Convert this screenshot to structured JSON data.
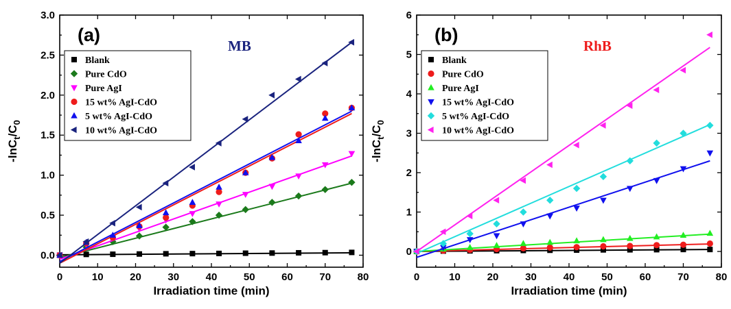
{
  "chart_data": [
    {
      "type": "scatter",
      "panel_label": "(a)",
      "annotation": {
        "text": "MB",
        "color": "#1a237e"
      },
      "xlabel": "Irradiation time (min)",
      "ylabel": "-lnCt/C0",
      "ylabel_parts": {
        "main": "-lnC",
        "sub1": "t",
        "mid": "/C",
        "sub2": "0"
      },
      "xlim": [
        0,
        80
      ],
      "ylim": [
        -0.15,
        3.0
      ],
      "xticks": [
        "0",
        "10",
        "20",
        "30",
        "40",
        "50",
        "60",
        "70",
        "80"
      ],
      "yticks": [
        "0.0",
        "0.5",
        "1.0",
        "1.5",
        "2.0",
        "2.5",
        "3.0"
      ],
      "legend_position": "top-left",
      "series": [
        {
          "name": "Blank",
          "color": "#000000",
          "marker": "square",
          "x": [
            0,
            7,
            14,
            21,
            28,
            35,
            42,
            49,
            56,
            63,
            70,
            77
          ],
          "y": [
            0,
            0.01,
            0.012,
            0.015,
            0.018,
            0.02,
            0.022,
            0.025,
            0.027,
            0.03,
            0.032,
            0.035
          ],
          "fit": [
            [
              0,
              0.005
            ],
            [
              77,
              0.03
            ]
          ]
        },
        {
          "name": "Pure CdO",
          "color": "#1b7a1b",
          "marker": "diamond",
          "x": [
            0,
            7,
            14,
            21,
            28,
            35,
            42,
            49,
            56,
            63,
            70,
            77
          ],
          "y": [
            0,
            0.1,
            0.17,
            0.24,
            0.35,
            0.42,
            0.5,
            0.57,
            0.66,
            0.74,
            0.82,
            0.91
          ],
          "fit": [
            [
              0,
              -0.03
            ],
            [
              77,
              0.9
            ]
          ]
        },
        {
          "name": "Pure AgI",
          "color": "#ff00ff",
          "marker": "triangle-down",
          "x": [
            0,
            7,
            14,
            21,
            28,
            35,
            42,
            49,
            56,
            63,
            70,
            77
          ],
          "y": [
            0,
            0.13,
            0.22,
            0.33,
            0.44,
            0.52,
            0.64,
            0.76,
            0.86,
            0.99,
            1.13,
            1.27
          ],
          "fit": [
            [
              0,
              -0.05
            ],
            [
              77,
              1.24
            ]
          ]
        },
        {
          "name": "15 wt% AgI-CdO",
          "color": "#ee1c1c",
          "marker": "circle",
          "x": [
            0,
            7,
            14,
            21,
            28,
            35,
            42,
            49,
            56,
            63,
            70,
            77
          ],
          "y": [
            0,
            0.15,
            0.22,
            0.36,
            0.47,
            0.62,
            0.79,
            1.03,
            1.21,
            1.51,
            1.77,
            1.84
          ],
          "fit": [
            [
              0,
              -0.1
            ],
            [
              77,
              1.77
            ]
          ]
        },
        {
          "name": "5 wt% AgI-CdO",
          "color": "#1010ee",
          "marker": "triangle-up",
          "x": [
            0,
            7,
            14,
            21,
            28,
            35,
            42,
            49,
            56,
            63,
            70,
            77
          ],
          "y": [
            0,
            0.16,
            0.25,
            0.37,
            0.53,
            0.66,
            0.85,
            1.03,
            1.22,
            1.43,
            1.71,
            1.84
          ],
          "fit": [
            [
              0,
              -0.08
            ],
            [
              77,
              1.8
            ]
          ]
        },
        {
          "name": "10 wt% AgI-CdO",
          "color": "#1a237e",
          "marker": "triangle-left",
          "x": [
            0,
            7,
            14,
            21,
            28,
            35,
            42,
            49,
            56,
            63,
            70,
            77
          ],
          "y": [
            0,
            0.17,
            0.4,
            0.6,
            0.9,
            1.1,
            1.4,
            1.7,
            2.0,
            2.2,
            2.4,
            2.66
          ],
          "fit": [
            [
              0,
              -0.1
            ],
            [
              77,
              2.66
            ]
          ]
        }
      ]
    },
    {
      "type": "scatter",
      "panel_label": "(b)",
      "annotation": {
        "text": "RhB",
        "color": "#ee1c1c"
      },
      "xlabel": "Irradiation time (min)",
      "ylabel": "-lnCt/C0",
      "ylabel_parts": {
        "main": "-lnC",
        "sub1": "t",
        "mid": "/C",
        "sub2": "0"
      },
      "xlim": [
        0,
        80
      ],
      "ylim": [
        -0.4,
        6.0
      ],
      "xticks": [
        "0",
        "10",
        "20",
        "30",
        "40",
        "50",
        "60",
        "70",
        "80"
      ],
      "yticks": [
        "0",
        "1",
        "2",
        "3",
        "4",
        "5",
        "6"
      ],
      "legend_position": "top-left",
      "series": [
        {
          "name": "Blank",
          "color": "#000000",
          "marker": "square",
          "x": [
            0,
            7,
            14,
            21,
            28,
            35,
            42,
            49,
            56,
            63,
            70,
            77
          ],
          "y": [
            0,
            0.01,
            0.015,
            0.02,
            0.025,
            0.03,
            0.035,
            0.04,
            0.042,
            0.045,
            0.05,
            0.05
          ],
          "fit": [
            [
              0,
              0.0
            ],
            [
              77,
              0.05
            ]
          ]
        },
        {
          "name": "Pure CdO",
          "color": "#ee1c1c",
          "marker": "circle",
          "x": [
            0,
            7,
            14,
            21,
            28,
            35,
            42,
            49,
            56,
            63,
            70,
            77
          ],
          "y": [
            0,
            0.02,
            0.04,
            0.06,
            0.08,
            0.1,
            0.11,
            0.13,
            0.14,
            0.16,
            0.17,
            0.2
          ],
          "fit": [
            [
              0,
              0.0
            ],
            [
              77,
              0.19
            ]
          ]
        },
        {
          "name": "Pure AgI",
          "color": "#22ee22",
          "marker": "triangle-up",
          "x": [
            0,
            7,
            14,
            21,
            28,
            35,
            42,
            49,
            56,
            63,
            70,
            77
          ],
          "y": [
            0,
            0.06,
            0.1,
            0.15,
            0.2,
            0.23,
            0.27,
            0.3,
            0.33,
            0.37,
            0.41,
            0.46
          ],
          "fit": [
            [
              0,
              0.0
            ],
            [
              77,
              0.44
            ]
          ]
        },
        {
          "name": "15 wt% AgI-CdO",
          "color": "#1010ee",
          "marker": "triangle-down",
          "x": [
            0,
            7,
            14,
            21,
            28,
            35,
            42,
            49,
            56,
            63,
            70,
            77
          ],
          "y": [
            0,
            0.1,
            0.3,
            0.4,
            0.7,
            0.9,
            1.1,
            1.3,
            1.6,
            1.8,
            2.1,
            2.5
          ],
          "fit": [
            [
              0,
              -0.15
            ],
            [
              77,
              2.3
            ]
          ]
        },
        {
          "name": "5 wt% AgI-CdO",
          "color": "#22dddd",
          "marker": "diamond",
          "x": [
            0,
            7,
            14,
            21,
            28,
            35,
            42,
            49,
            56,
            63,
            70,
            77
          ],
          "y": [
            0,
            0.2,
            0.45,
            0.7,
            1.0,
            1.3,
            1.6,
            1.9,
            2.3,
            2.75,
            3.0,
            3.2
          ],
          "fit": [
            [
              0,
              -0.05
            ],
            [
              77,
              3.22
            ]
          ]
        },
        {
          "name": "10 wt% AgI-CdO",
          "color": "#ff22ee",
          "marker": "triangle-left",
          "x": [
            0,
            7,
            14,
            21,
            28,
            35,
            42,
            49,
            56,
            63,
            70,
            77
          ],
          "y": [
            0,
            0.5,
            0.9,
            1.3,
            1.8,
            2.2,
            2.7,
            3.2,
            3.7,
            4.1,
            4.6,
            5.5
          ],
          "fit": [
            [
              0,
              0.0
            ],
            [
              77,
              5.18
            ]
          ]
        }
      ]
    }
  ]
}
